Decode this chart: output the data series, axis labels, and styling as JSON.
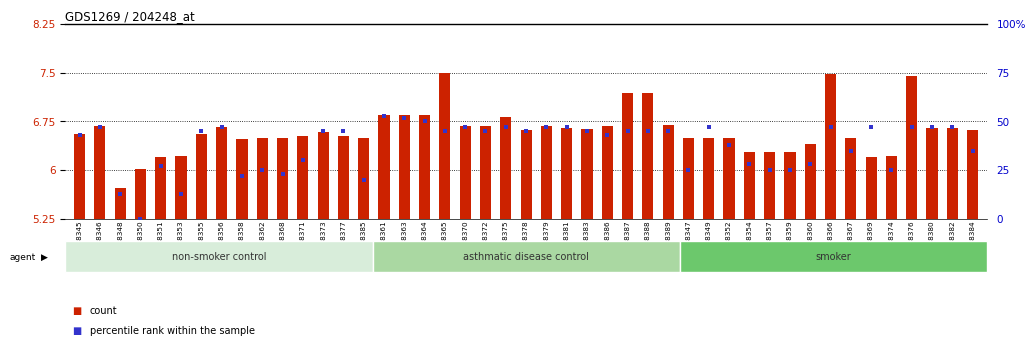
{
  "title": "GDS1269 / 204248_at",
  "ylim": [
    5.25,
    8.25
  ],
  "yticks": [
    5.25,
    6.0,
    6.75,
    7.5,
    8.25
  ],
  "ytick_labels": [
    "5.25",
    "6",
    "6.75",
    "7.5",
    "8.25"
  ],
  "right_ytick_labels": [
    "0",
    "25",
    "50",
    "75",
    "100%"
  ],
  "bar_color": "#cc2200",
  "marker_color": "#3333cc",
  "samples": [
    "GSM38345",
    "GSM38346",
    "GSM38348",
    "GSM38350",
    "GSM38351",
    "GSM38353",
    "GSM38355",
    "GSM38356",
    "GSM38358",
    "GSM38362",
    "GSM38368",
    "GSM38371",
    "GSM38373",
    "GSM38377",
    "GSM38385",
    "GSM38361",
    "GSM38363",
    "GSM38364",
    "GSM38365",
    "GSM38370",
    "GSM38372",
    "GSM38375",
    "GSM38378",
    "GSM38379",
    "GSM38381",
    "GSM38383",
    "GSM38386",
    "GSM38387",
    "GSM38388",
    "GSM38389",
    "GSM38347",
    "GSM38349",
    "GSM38352",
    "GSM38354",
    "GSM38357",
    "GSM38359",
    "GSM38360",
    "GSM38366",
    "GSM38367",
    "GSM38369",
    "GSM38374",
    "GSM38376",
    "GSM38380",
    "GSM38382",
    "GSM38384"
  ],
  "bar_values": [
    6.55,
    6.68,
    5.72,
    6.02,
    6.2,
    6.22,
    6.55,
    6.67,
    6.48,
    6.5,
    6.5,
    6.53,
    6.58,
    6.53,
    6.5,
    6.85,
    6.85,
    6.85,
    7.5,
    6.68,
    6.68,
    6.82,
    6.62,
    6.68,
    6.65,
    6.63,
    6.68,
    7.18,
    7.18,
    6.7,
    6.5,
    6.5,
    6.5,
    6.28,
    6.28,
    6.28,
    6.4,
    7.48,
    6.5,
    6.2,
    6.22,
    7.45,
    6.65,
    6.65,
    6.62
  ],
  "percentile_values": [
    43,
    47,
    13,
    0,
    27,
    13,
    45,
    47,
    22,
    25,
    23,
    30,
    45,
    45,
    20,
    53,
    52,
    50,
    45,
    47,
    45,
    47,
    45,
    47,
    47,
    45,
    43,
    45,
    45,
    45,
    25,
    47,
    38,
    28,
    25,
    25,
    28,
    47,
    35,
    47,
    25,
    47,
    47,
    47,
    35
  ],
  "groups": [
    {
      "label": "non-smoker control",
      "start": 0,
      "end": 15,
      "color": "#d8edda"
    },
    {
      "label": "asthmatic disease control",
      "start": 15,
      "end": 30,
      "color": "#aad8a2"
    },
    {
      "label": "smoker",
      "start": 30,
      "end": 45,
      "color": "#6cc86c"
    }
  ]
}
